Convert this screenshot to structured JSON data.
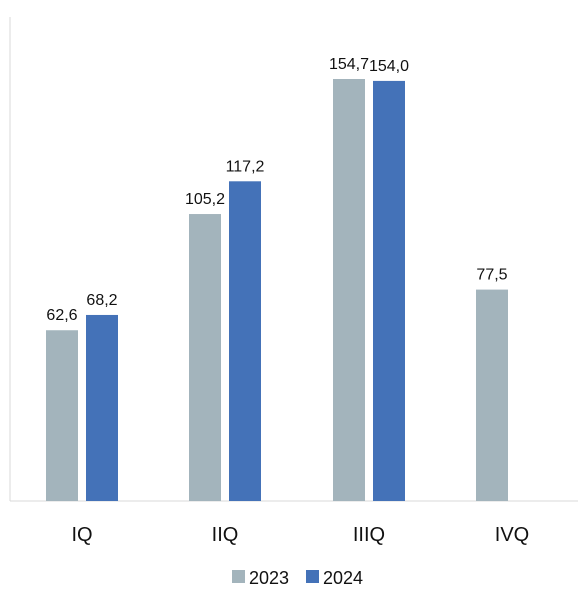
{
  "chart_data": {
    "type": "bar",
    "categories": [
      "IQ",
      "IIQ",
      "IIIQ",
      "IVQ"
    ],
    "series": [
      {
        "name": "2023",
        "values": [
          62.6,
          105.2,
          154.7,
          77.5
        ],
        "labels": [
          "62,6",
          "105,2",
          "154,7",
          "77,5"
        ],
        "color": "#a3b4bc"
      },
      {
        "name": "2024",
        "values": [
          68.2,
          117.2,
          154.0,
          null
        ],
        "labels": [
          "68,2",
          "117,2",
          "154,0",
          ""
        ],
        "color": "#4472b8"
      }
    ],
    "title": "",
    "xlabel": "",
    "ylabel": "",
    "ylim": [
      0,
      160
    ],
    "grid": false,
    "legend_position": "bottom",
    "axis_color": "#d9d9d9"
  }
}
